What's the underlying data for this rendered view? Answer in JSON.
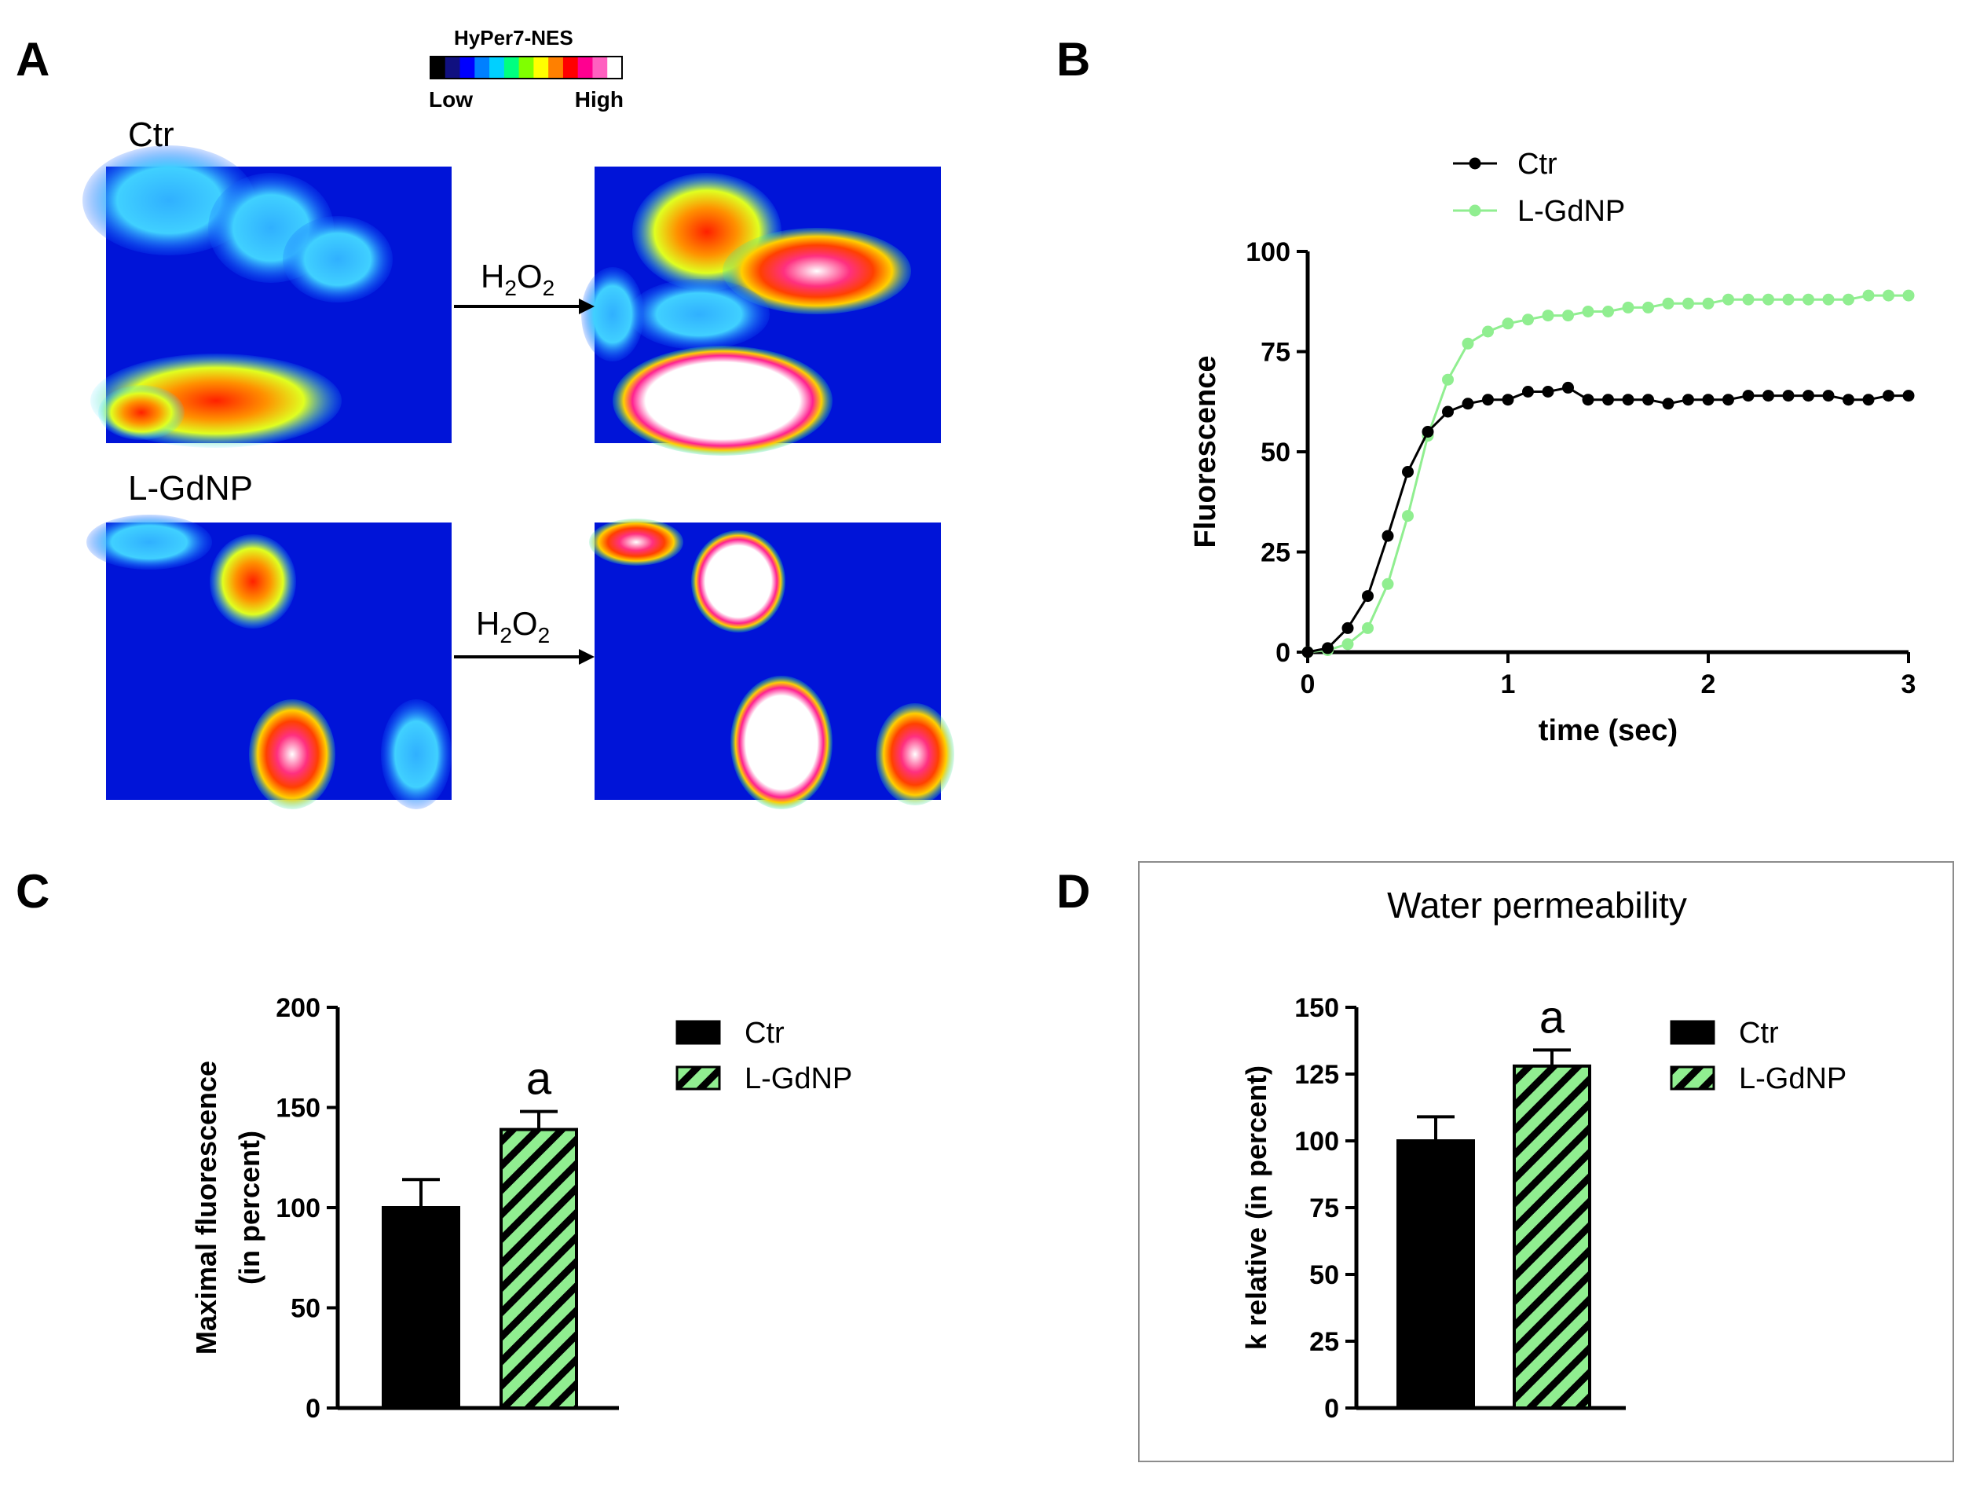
{
  "panels": {
    "a": "A",
    "b": "B",
    "c": "C",
    "d": "D"
  },
  "panel_a": {
    "colorbar_title": "HyPer7-NES",
    "colorbar_low": "Low",
    "colorbar_high": "High",
    "colorbar_colors": [
      "#000000",
      "#101080",
      "#0000ff",
      "#0080ff",
      "#00d0ff",
      "#00ff80",
      "#80ff00",
      "#ffff00",
      "#ff8000",
      "#ff0000",
      "#ff0090",
      "#ff60c0",
      "#ffffff"
    ],
    "row1_label": "Ctr",
    "row2_label": "L-GdNP",
    "arrow_label_base": "H",
    "arrow_label_sub1": "2",
    "arrow_label_mid": "O",
    "arrow_label_sub2": "2"
  },
  "chart_data": [
    {
      "panel": "B",
      "type": "line",
      "title": "",
      "xlabel": "time (sec)",
      "ylabel": "Fluorescence",
      "xlim": [
        0,
        3
      ],
      "ylim": [
        0,
        100
      ],
      "xticks": [
        0,
        1,
        2,
        3
      ],
      "yticks": [
        0,
        25,
        50,
        75,
        100
      ],
      "legend": "top-left",
      "series": [
        {
          "name": "Ctr",
          "color": "#000000",
          "x": [
            0,
            0.1,
            0.2,
            0.3,
            0.4,
            0.5,
            0.6,
            0.7,
            0.8,
            0.9,
            1.0,
            1.1,
            1.2,
            1.3,
            1.4,
            1.5,
            1.6,
            1.7,
            1.8,
            1.9,
            2.0,
            2.1,
            2.2,
            2.3,
            2.4,
            2.5,
            2.6,
            2.7,
            2.8,
            2.9,
            3.0
          ],
          "y": [
            0,
            1,
            6,
            14,
            29,
            45,
            55,
            60,
            62,
            63,
            63,
            65,
            65,
            66,
            63,
            63,
            63,
            63,
            62,
            63,
            63,
            63,
            64,
            64,
            64,
            64,
            64,
            63,
            63,
            64,
            64
          ]
        },
        {
          "name": "L-GdNP",
          "color": "#90ee90",
          "x": [
            0,
            0.1,
            0.2,
            0.3,
            0.4,
            0.5,
            0.6,
            0.7,
            0.8,
            0.9,
            1.0,
            1.1,
            1.2,
            1.3,
            1.4,
            1.5,
            1.6,
            1.7,
            1.8,
            1.9,
            2.0,
            2.1,
            2.2,
            2.3,
            2.4,
            2.5,
            2.6,
            2.7,
            2.8,
            2.9,
            3.0
          ],
          "y": [
            0,
            0.5,
            2,
            6,
            17,
            34,
            54,
            68,
            77,
            80,
            82,
            83,
            84,
            84,
            85,
            85,
            86,
            86,
            87,
            87,
            87,
            88,
            88,
            88,
            88,
            88,
            88,
            88,
            89,
            89,
            89
          ]
        }
      ]
    },
    {
      "panel": "C",
      "type": "bar",
      "title": "",
      "xlabel": "",
      "ylabel": "Maximal fluorescence",
      "ylabel_2": "(in percent)",
      "ylim": [
        0,
        200
      ],
      "yticks": [
        0,
        50,
        100,
        150,
        200
      ],
      "legend": "right",
      "categories": [
        "Ctr",
        "L-GdNP"
      ],
      "values": [
        100,
        139
      ],
      "errors": [
        14,
        9
      ],
      "annotations": [
        "",
        "a"
      ],
      "fills": [
        "#000000",
        "hatch"
      ],
      "hatch_color": "#90ee90"
    },
    {
      "panel": "D",
      "type": "bar",
      "title": "Water permeability",
      "xlabel": "",
      "ylabel": "k relative (in percent)",
      "ylim": [
        0,
        150
      ],
      "yticks": [
        0,
        25,
        50,
        75,
        100,
        125,
        150
      ],
      "legend": "right",
      "categories": [
        "Ctr",
        "L-GdNP"
      ],
      "values": [
        100,
        128
      ],
      "errors": [
        9,
        6
      ],
      "annotations": [
        "",
        "a"
      ],
      "fills": [
        "#000000",
        "hatch"
      ],
      "hatch_color": "#90ee90"
    }
  ]
}
